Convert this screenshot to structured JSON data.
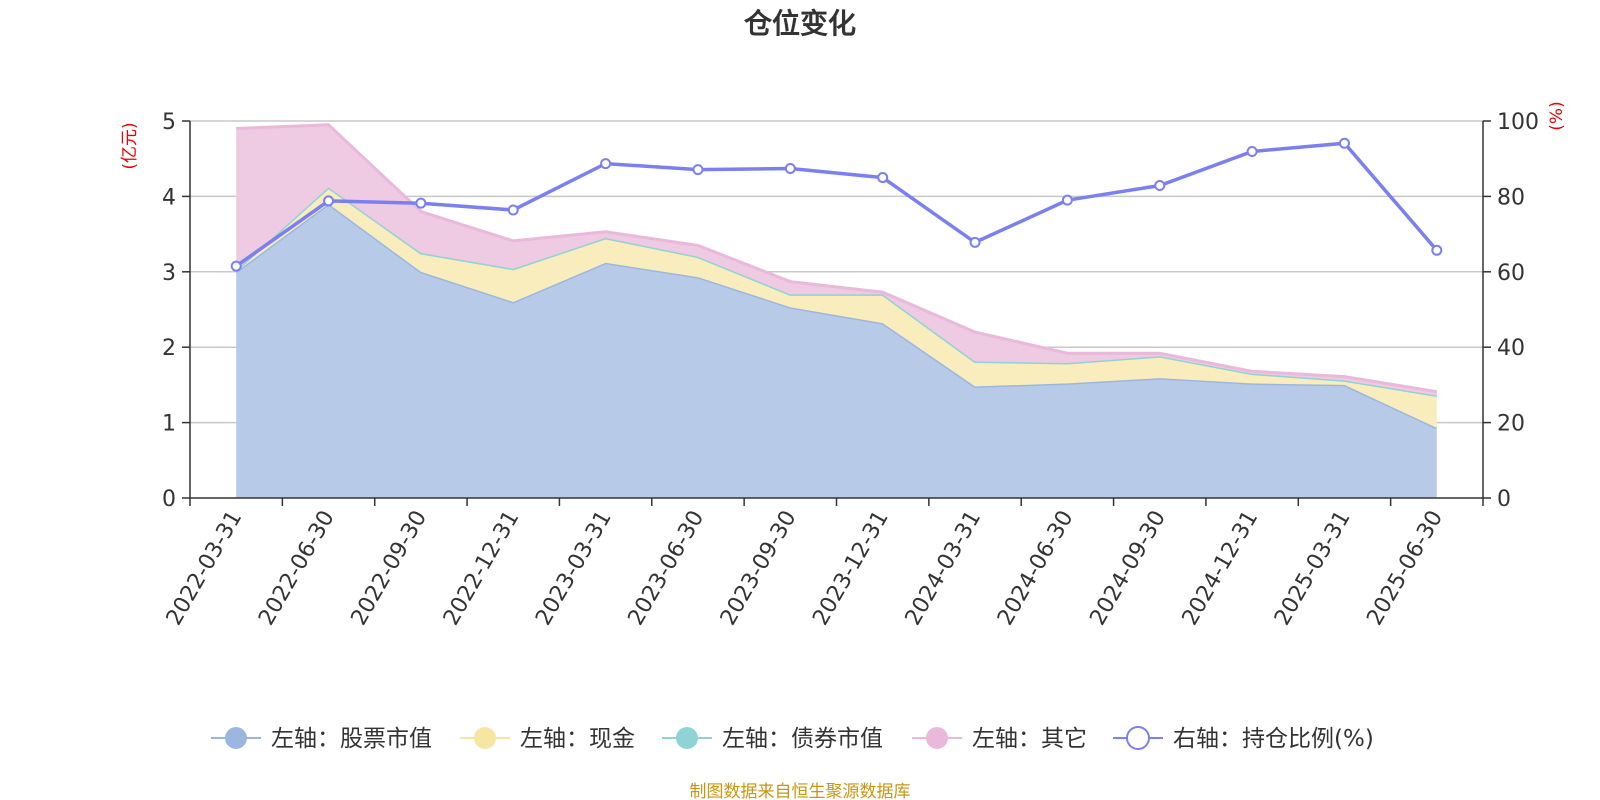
{
  "chart_data": {
    "type": "area",
    "title": "仓位变化",
    "left_axis": {
      "unit": "(亿元)",
      "ylim": [
        0,
        5
      ],
      "ticks": [
        "0",
        "1",
        "2",
        "3",
        "4",
        "5"
      ]
    },
    "right_axis": {
      "unit": "(%)",
      "ylim": [
        0,
        100
      ],
      "ticks": [
        "0",
        "20",
        "40",
        "60",
        "80",
        "100"
      ]
    },
    "categories": [
      "2022-03-31",
      "2022-06-30",
      "2022-09-30",
      "2022-12-31",
      "2023-03-31",
      "2023-06-30",
      "2023-09-30",
      "2023-12-31",
      "2024-03-31",
      "2024-06-30",
      "2024-09-30",
      "2024-12-31",
      "2025-03-31",
      "2025-06-30"
    ],
    "series": [
      {
        "name": "左轴：股票市值",
        "axis": "left",
        "stacked": true,
        "color": "#9bb7e0",
        "fill": "#b7cbe9",
        "values": [
          3.0,
          3.9,
          3.0,
          2.6,
          3.12,
          2.93,
          2.53,
          2.32,
          1.48,
          1.52,
          1.59,
          1.52,
          1.5,
          0.93
        ]
      },
      {
        "name": "左轴：现金",
        "axis": "left",
        "stacked": true,
        "color": "#f7e6a2",
        "fill": "#f9edbd",
        "values": [
          0.02,
          0.22,
          0.25,
          0.44,
          0.33,
          0.27,
          0.17,
          0.38,
          0.33,
          0.27,
          0.29,
          0.13,
          0.06,
          0.43
        ]
      },
      {
        "name": "左轴：债券市值",
        "axis": "left",
        "stacked": true,
        "color": "#8fd3d6",
        "fill": "#b5e3e5",
        "values": [
          0,
          0,
          0,
          0,
          0,
          0,
          0,
          0,
          0,
          0,
          0,
          0,
          0,
          0
        ]
      },
      {
        "name": "左轴：其它",
        "axis": "left",
        "stacked": true,
        "color": "#e9b8da",
        "fill": "#eecbe2",
        "values": [
          1.88,
          0.83,
          0.55,
          0.37,
          0.08,
          0.15,
          0.17,
          0.03,
          0.39,
          0.13,
          0.04,
          0.03,
          0.05,
          0.05
        ]
      },
      {
        "name": "右轴：持仓比例(%)",
        "axis": "right",
        "type": "line",
        "color": "#7b7ff0",
        "values": [
          61.5,
          78.8,
          78.2,
          76.4,
          88.7,
          87.1,
          87.4,
          85.0,
          67.8,
          79.0,
          82.9,
          91.9,
          94.1,
          65.7
        ]
      }
    ],
    "grid": true,
    "legend_position": "bottom",
    "source_note": "制图数据来自恒生聚源数据库"
  }
}
